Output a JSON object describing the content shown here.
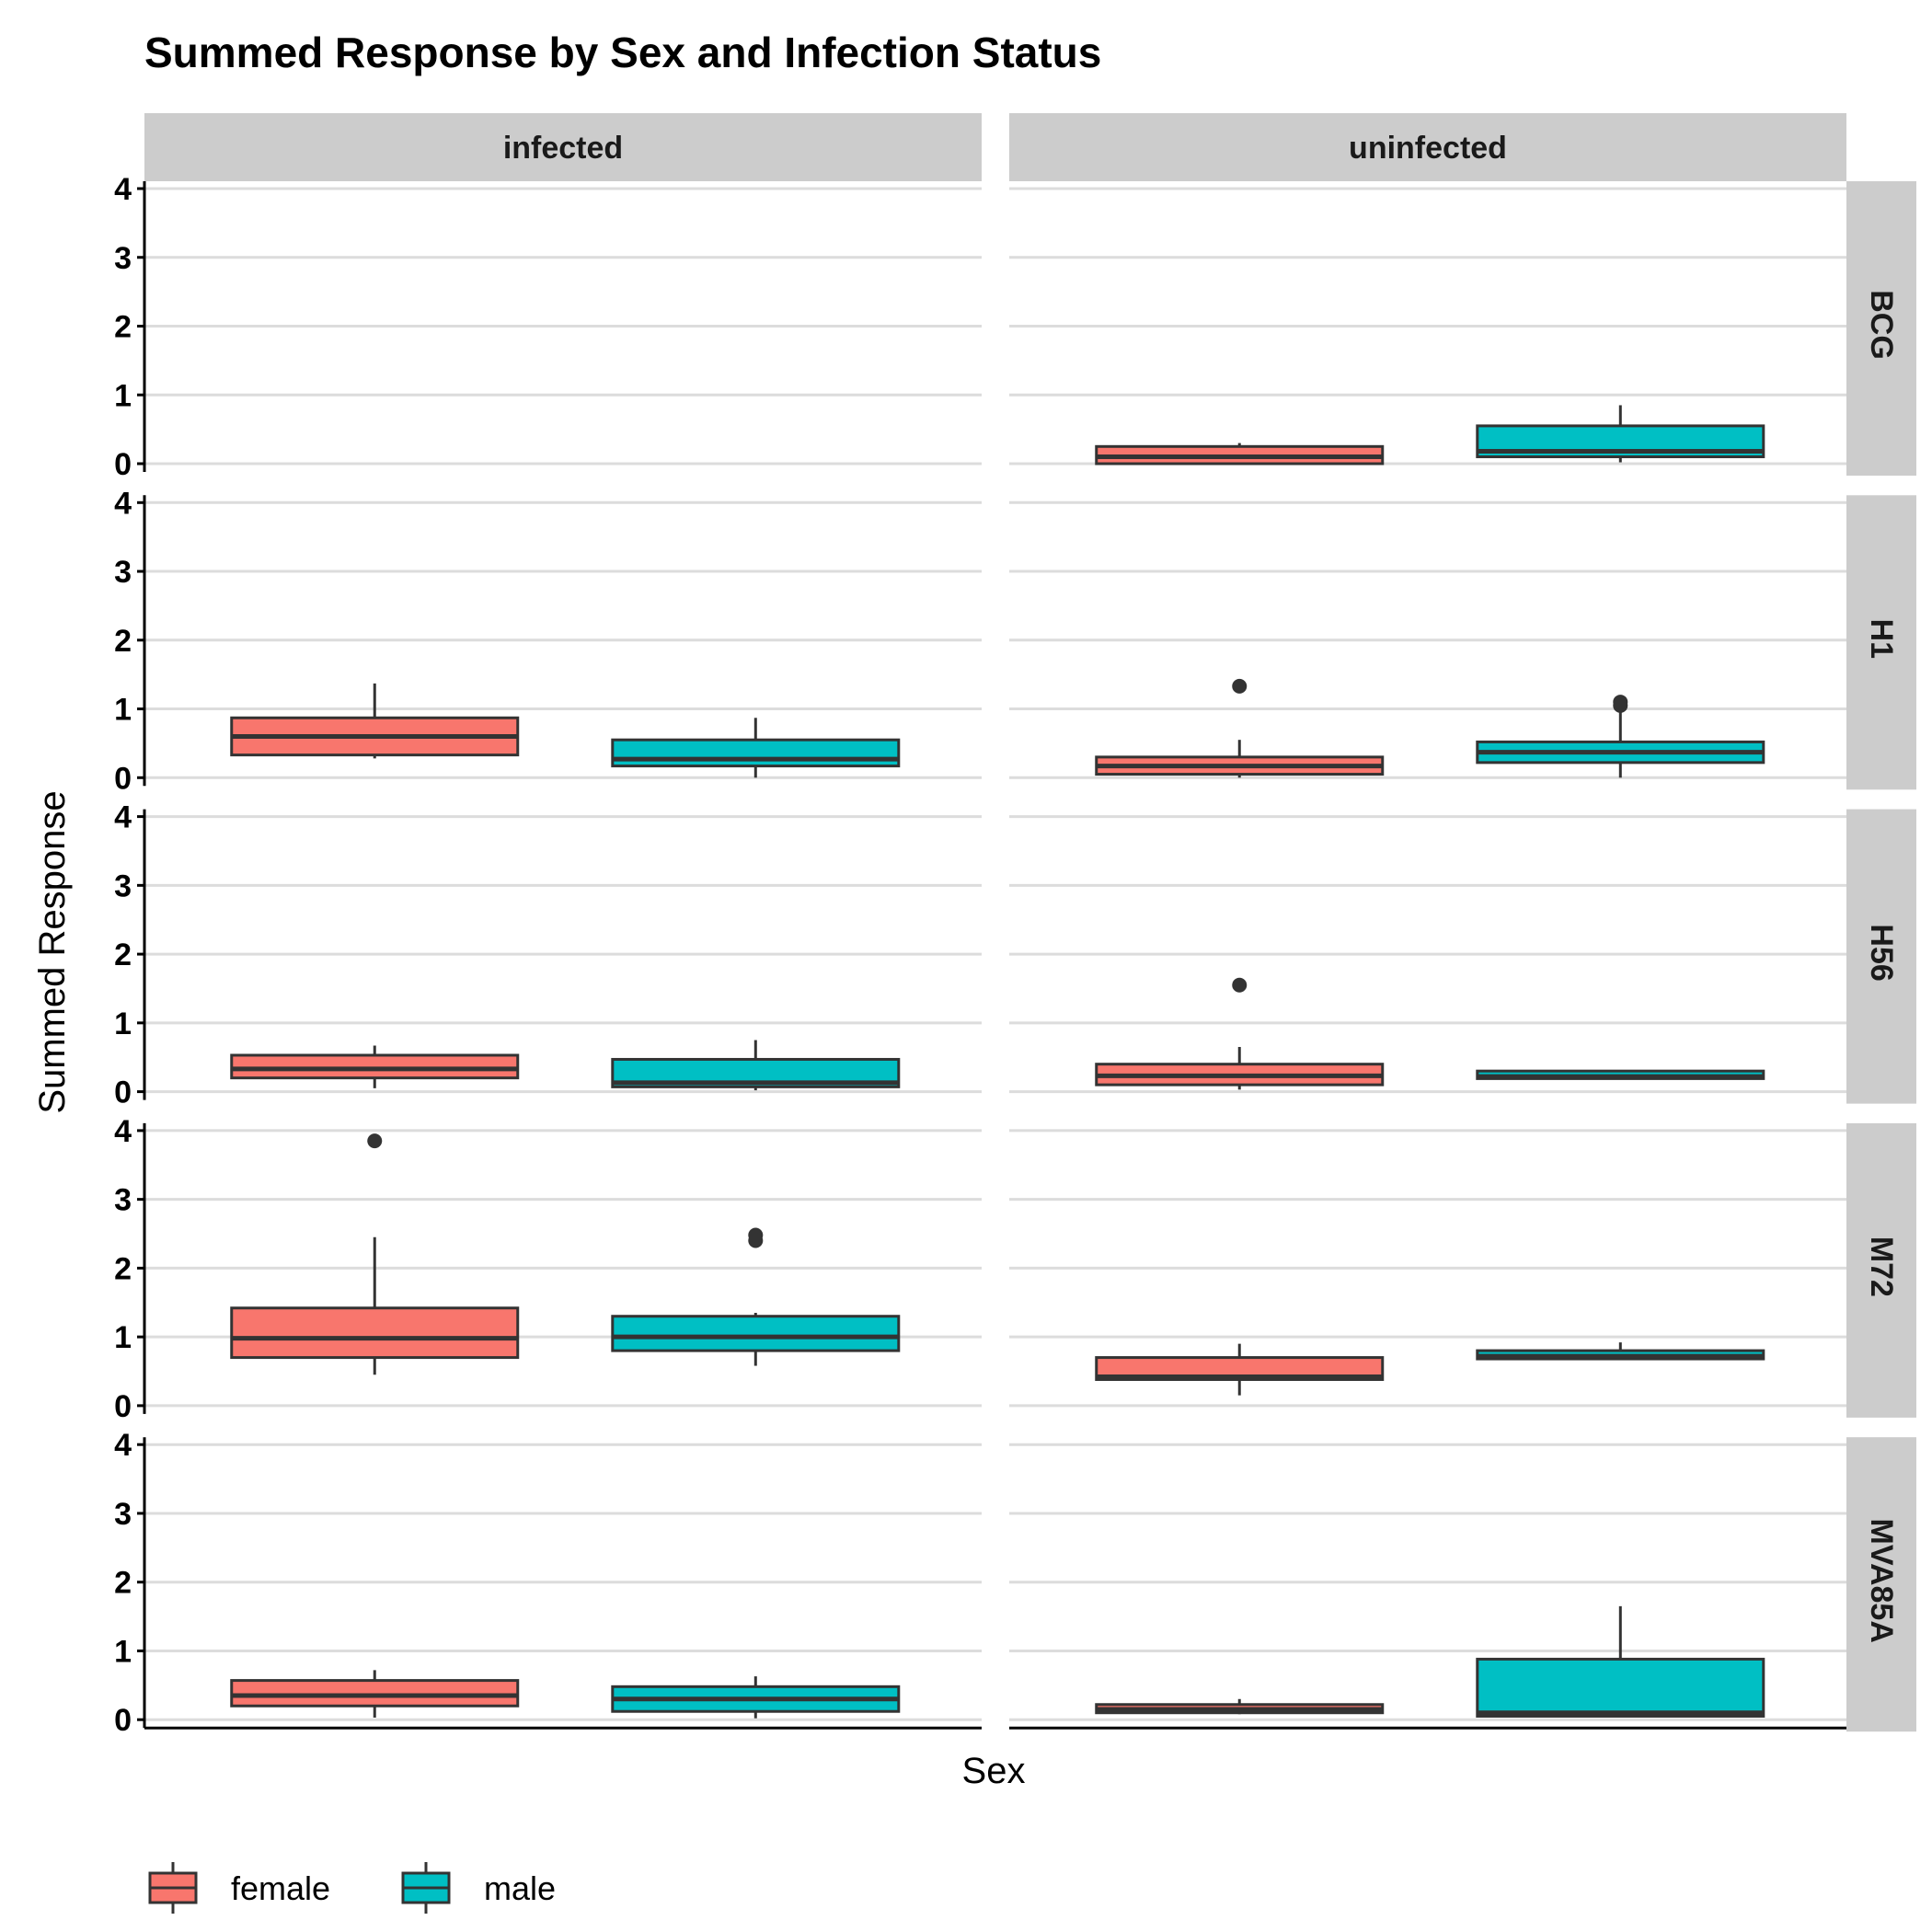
{
  "chart_data": {
    "type": "boxplot",
    "title": "Summed Response by Sex and Infection Status",
    "xlabel": "Sex",
    "ylabel": "Summed Response",
    "ylim": [
      0,
      4
    ],
    "yticks": [
      0,
      1,
      2,
      3,
      4
    ],
    "grid": "horizontal major",
    "legend_position": "bottom-left",
    "columns": [
      "infected",
      "uninfected"
    ],
    "rows": [
      "BCG",
      "H1",
      "H56",
      "M72",
      "MVA85A"
    ],
    "groups": [
      {
        "name": "female",
        "color": "#F8766D"
      },
      {
        "name": "male",
        "color": "#00BFC4"
      }
    ],
    "panels": [
      {
        "row": "BCG",
        "column": "uninfected",
        "boxes": [
          {
            "group": "female",
            "min": 0.0,
            "q1": 0.0,
            "median": 0.1,
            "q3": 0.25,
            "max": 0.3,
            "outliers": []
          },
          {
            "group": "male",
            "min": 0.02,
            "q1": 0.1,
            "median": 0.18,
            "q3": 0.55,
            "max": 0.85,
            "outliers": []
          }
        ]
      },
      {
        "row": "H1",
        "column": "infected",
        "boxes": [
          {
            "group": "female",
            "min": 0.28,
            "q1": 0.33,
            "median": 0.6,
            "q3": 0.87,
            "max": 1.37,
            "outliers": []
          },
          {
            "group": "male",
            "min": 0.0,
            "q1": 0.17,
            "median": 0.27,
            "q3": 0.55,
            "max": 0.87,
            "outliers": []
          }
        ]
      },
      {
        "row": "H1",
        "column": "uninfected",
        "boxes": [
          {
            "group": "female",
            "min": 0.0,
            "q1": 0.05,
            "median": 0.17,
            "q3": 0.3,
            "max": 0.55,
            "outliers": [
              1.33
            ]
          },
          {
            "group": "male",
            "min": 0.0,
            "q1": 0.22,
            "median": 0.37,
            "q3": 0.52,
            "max": 0.95,
            "outliers": [
              1.05,
              1.1
            ]
          }
        ]
      },
      {
        "row": "H56",
        "column": "infected",
        "boxes": [
          {
            "group": "female",
            "min": 0.05,
            "q1": 0.2,
            "median": 0.33,
            "q3": 0.53,
            "max": 0.67,
            "outliers": []
          },
          {
            "group": "male",
            "min": 0.02,
            "q1": 0.07,
            "median": 0.13,
            "q3": 0.47,
            "max": 0.75,
            "outliers": []
          }
        ]
      },
      {
        "row": "H56",
        "column": "uninfected",
        "boxes": [
          {
            "group": "female",
            "min": 0.03,
            "q1": 0.1,
            "median": 0.23,
            "q3": 0.4,
            "max": 0.65,
            "outliers": [
              1.55
            ]
          },
          {
            "group": "male",
            "min": 0.18,
            "q1": 0.19,
            "median": 0.22,
            "q3": 0.3,
            "max": 0.3,
            "outliers": []
          }
        ]
      },
      {
        "row": "M72",
        "column": "infected",
        "boxes": [
          {
            "group": "female",
            "min": 0.45,
            "q1": 0.7,
            "median": 0.98,
            "q3": 1.42,
            "max": 2.45,
            "outliers": [
              3.85
            ]
          },
          {
            "group": "male",
            "min": 0.58,
            "q1": 0.8,
            "median": 1.0,
            "q3": 1.3,
            "max": 1.35,
            "outliers": [
              2.4,
              2.48
            ]
          }
        ]
      },
      {
        "row": "M72",
        "column": "uninfected",
        "boxes": [
          {
            "group": "female",
            "min": 0.15,
            "q1": 0.38,
            "median": 0.42,
            "q3": 0.7,
            "max": 0.9,
            "outliers": []
          },
          {
            "group": "male",
            "min": 0.68,
            "q1": 0.68,
            "median": 0.72,
            "q3": 0.8,
            "max": 0.92,
            "outliers": []
          }
        ]
      },
      {
        "row": "MVA85A",
        "column": "infected",
        "boxes": [
          {
            "group": "female",
            "min": 0.03,
            "q1": 0.2,
            "median": 0.35,
            "q3": 0.57,
            "max": 0.72,
            "outliers": []
          },
          {
            "group": "male",
            "min": 0.02,
            "q1": 0.12,
            "median": 0.3,
            "q3": 0.48,
            "max": 0.63,
            "outliers": []
          }
        ]
      },
      {
        "row": "MVA85A",
        "column": "uninfected",
        "boxes": [
          {
            "group": "female",
            "min": 0.08,
            "q1": 0.1,
            "median": 0.15,
            "q3": 0.22,
            "max": 0.3,
            "outliers": []
          },
          {
            "group": "male",
            "min": 0.05,
            "q1": 0.05,
            "median": 0.1,
            "q3": 0.88,
            "max": 1.65,
            "outliers": []
          }
        ]
      }
    ]
  }
}
